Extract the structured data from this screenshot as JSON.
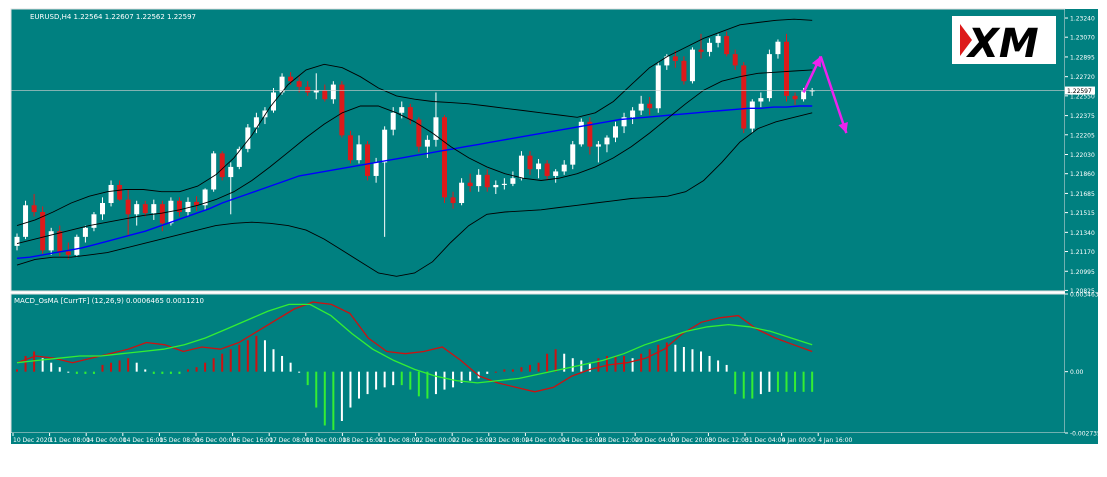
{
  "chart_data": [
    {
      "type": "candlestick",
      "title": "EURUSD,H4  1.22564 1.22607 1.22562 1.22597",
      "current_price_label": "1.22597",
      "ylim": [
        1.2082,
        1.2332
      ],
      "price_axis_ticks": [
        "1.23240",
        "1.23070",
        "1.22895",
        "1.22720",
        "1.22550",
        "1.22375",
        "1.22205",
        "1.22030",
        "1.21860",
        "1.21685",
        "1.21515",
        "1.21340",
        "1.21170",
        "1.20995",
        "1.20825"
      ],
      "x_ticks": [
        "10 Dec 2020",
        "11 Dec 08:00",
        "14 Dec 00:00",
        "14 Dec 16:00",
        "15 Dec 08:00",
        "16 Dec 00:00",
        "16 Dec 16:00",
        "17 Dec 08:00",
        "18 Dec 00:00",
        "18 Dec 16:00",
        "21 Dec 08:00",
        "22 Dec 00:00",
        "22 Dec 16:00",
        "23 Dec 08:00",
        "24 Dec 00:00",
        "24 Dec 16:00",
        "28 Dec 12:00",
        "29 Dec 04:00",
        "29 Dec 20:00",
        "30 Dec 12:00",
        "31 Dec 04:00",
        "4 Jan 00:00",
        "4 Jan 16:00"
      ],
      "candles": [
        [
          1.2122,
          1.2133,
          1.2118,
          1.213
        ],
        [
          1.213,
          1.2162,
          1.2128,
          1.2158
        ],
        [
          1.2158,
          1.2168,
          1.2148,
          1.2152
        ],
        [
          1.2152,
          1.2157,
          1.2115,
          1.2118
        ],
        [
          1.2118,
          1.2138,
          1.2114,
          1.2135
        ],
        [
          1.2135,
          1.214,
          1.2113,
          1.2117
        ],
        [
          1.2117,
          1.2125,
          1.211,
          1.2114
        ],
        [
          1.2114,
          1.2132,
          1.2112,
          1.213
        ],
        [
          1.213,
          1.214,
          1.2125,
          1.2138
        ],
        [
          1.2138,
          1.2152,
          1.2135,
          1.215
        ],
        [
          1.215,
          1.2165,
          1.2145,
          1.216
        ],
        [
          1.216,
          1.218,
          1.2157,
          1.2176
        ],
        [
          1.2176,
          1.218,
          1.2162,
          1.2163
        ],
        [
          1.2163,
          1.2172,
          1.213,
          1.215
        ],
        [
          1.215,
          1.2162,
          1.214,
          1.2159
        ],
        [
          1.2159,
          1.2162,
          1.2148,
          1.2151
        ],
        [
          1.2151,
          1.2163,
          1.2145,
          1.2159
        ],
        [
          1.2159,
          1.2162,
          1.2135,
          1.2142
        ],
        [
          1.2142,
          1.2165,
          1.214,
          1.2162
        ],
        [
          1.2162,
          1.2165,
          1.2148,
          1.2152
        ],
        [
          1.2152,
          1.2165,
          1.2148,
          1.2161
        ],
        [
          1.2161,
          1.2166,
          1.2153,
          1.2158
        ],
        [
          1.2158,
          1.2173,
          1.2154,
          1.2172
        ],
        [
          1.2172,
          1.2206,
          1.217,
          1.2204
        ],
        [
          1.2204,
          1.2206,
          1.218,
          1.2183
        ],
        [
          1.2183,
          1.2196,
          1.215,
          1.2192
        ],
        [
          1.2192,
          1.221,
          1.219,
          1.2208
        ],
        [
          1.2208,
          1.223,
          1.2205,
          1.2227
        ],
        [
          1.2227,
          1.224,
          1.2222,
          1.2236
        ],
        [
          1.2236,
          1.2245,
          1.223,
          1.2242
        ],
        [
          1.2242,
          1.2262,
          1.224,
          1.2258
        ],
        [
          1.2258,
          1.2275,
          1.2256,
          1.2272
        ],
        [
          1.2272,
          1.2276,
          1.2265,
          1.2268
        ],
        [
          1.2268,
          1.2272,
          1.2258,
          1.2263
        ],
        [
          1.2263,
          1.2268,
          1.2255,
          1.2258
        ],
        [
          1.2258,
          1.2275,
          1.2252,
          1.226
        ],
        [
          1.226,
          1.2265,
          1.225,
          1.2252
        ],
        [
          1.2252,
          1.2268,
          1.2248,
          1.2265
        ],
        [
          1.2265,
          1.2268,
          1.2218,
          1.222
        ],
        [
          1.222,
          1.2224,
          1.2195,
          1.2198
        ],
        [
          1.2198,
          1.222,
          1.2195,
          1.2212
        ],
        [
          1.2212,
          1.2215,
          1.218,
          1.2184
        ],
        [
          1.2184,
          1.22,
          1.2178,
          1.2196
        ],
        [
          1.2196,
          1.2228,
          1.213,
          1.2225
        ],
        [
          1.2225,
          1.2245,
          1.222,
          1.224
        ],
        [
          1.224,
          1.225,
          1.2235,
          1.2245
        ],
        [
          1.2245,
          1.2248,
          1.223,
          1.2234
        ],
        [
          1.2234,
          1.2236,
          1.2205,
          1.221
        ],
        [
          1.221,
          1.222,
          1.22,
          1.2216
        ],
        [
          1.2216,
          1.2258,
          1.221,
          1.2236
        ],
        [
          1.2236,
          1.2238,
          1.216,
          1.2165
        ],
        [
          1.2165,
          1.217,
          1.2155,
          1.216
        ],
        [
          1.216,
          1.2182,
          1.2158,
          1.2178
        ],
        [
          1.2178,
          1.2186,
          1.217,
          1.2175
        ],
        [
          1.2175,
          1.219,
          1.217,
          1.2185
        ],
        [
          1.2185,
          1.219,
          1.217,
          1.2174
        ],
        [
          1.2174,
          1.218,
          1.2168,
          1.2176
        ],
        [
          1.2176,
          1.2182,
          1.2172,
          1.2177
        ],
        [
          1.2177,
          1.2188,
          1.2175,
          1.2182
        ],
        [
          1.2182,
          1.2206,
          1.218,
          1.2202
        ],
        [
          1.2202,
          1.2206,
          1.2185,
          1.219
        ],
        [
          1.219,
          1.2199,
          1.2182,
          1.2195
        ],
        [
          1.2195,
          1.2198,
          1.218,
          1.2184
        ],
        [
          1.2184,
          1.219,
          1.2178,
          1.2188
        ],
        [
          1.2188,
          1.2198,
          1.2185,
          1.2194
        ],
        [
          1.2194,
          1.2215,
          1.219,
          1.2212
        ],
        [
          1.2212,
          1.2235,
          1.221,
          1.2232
        ],
        [
          1.2232,
          1.2236,
          1.2203,
          1.221
        ],
        [
          1.221,
          1.2215,
          1.2196,
          1.2212
        ],
        [
          1.2212,
          1.222,
          1.2205,
          1.2218
        ],
        [
          1.2218,
          1.2232,
          1.2214,
          1.2228
        ],
        [
          1.2228,
          1.224,
          1.2222,
          1.2236
        ],
        [
          1.2236,
          1.2245,
          1.223,
          1.2242
        ],
        [
          1.2242,
          1.2255,
          1.2238,
          1.2248
        ],
        [
          1.2248,
          1.2254,
          1.2238,
          1.2244
        ],
        [
          1.2244,
          1.2285,
          1.224,
          1.2282
        ],
        [
          1.2282,
          1.2292,
          1.2278,
          1.229
        ],
        [
          1.229,
          1.2295,
          1.228,
          1.2286
        ],
        [
          1.2286,
          1.229,
          1.2265,
          1.2268
        ],
        [
          1.2268,
          1.2298,
          1.2266,
          1.2296
        ],
        [
          1.2296,
          1.231,
          1.2288,
          1.2294
        ],
        [
          1.2294,
          1.2306,
          1.229,
          1.2302
        ],
        [
          1.2302,
          1.231,
          1.2298,
          1.2308
        ],
        [
          1.2308,
          1.2312,
          1.229,
          1.2292
        ],
        [
          1.2292,
          1.2296,
          1.2278,
          1.2282
        ],
        [
          1.2282,
          1.2285,
          1.2222,
          1.2226
        ],
        [
          1.2226,
          1.2252,
          1.2222,
          1.225
        ],
        [
          1.225,
          1.2258,
          1.2245,
          1.2253
        ],
        [
          1.2253,
          1.2296,
          1.225,
          1.2292
        ],
        [
          1.2292,
          1.2305,
          1.2288,
          1.2303
        ],
        [
          1.2303,
          1.231,
          1.225,
          1.2255
        ],
        [
          1.2255,
          1.2258,
          1.2247,
          1.2252
        ],
        [
          1.2252,
          1.2262,
          1.225,
          1.2259
        ],
        [
          1.2259,
          1.2262,
          1.2255,
          1.226
        ]
      ],
      "overlays": [
        {
          "kind": "moving-average",
          "color": "#0000ff",
          "values": [
            1.2111,
            1.2112,
            1.2114,
            1.2116,
            1.2118,
            1.212,
            1.2123,
            1.2126,
            1.2129,
            1.2132,
            1.2135,
            1.2139,
            1.2143,
            1.2147,
            1.2151,
            1.2155,
            1.216,
            1.2164,
            1.2168,
            1.2172,
            1.2176,
            1.218,
            1.2184,
            1.2186,
            1.2188,
            1.219,
            1.2192,
            1.2194,
            1.2196,
            1.2198,
            1.22,
            1.2202,
            1.2204,
            1.2206,
            1.2208,
            1.221,
            1.2212,
            1.2214,
            1.2216,
            1.2218,
            1.222,
            1.2222,
            1.2224,
            1.2226,
            1.2228,
            1.223,
            1.2232,
            1.2234,
            1.2235,
            1.2236,
            1.2237,
            1.2238,
            1.2239,
            1.224,
            1.2241,
            1.2242,
            1.2243,
            1.2244,
            1.2244,
            1.2245,
            1.2245,
            1.2246,
            1.2246
          ]
        },
        {
          "kind": "bollinger-upper",
          "color": "#000000",
          "values": [
            1.214,
            1.2145,
            1.2152,
            1.216,
            1.2166,
            1.217,
            1.2172,
            1.2172,
            1.217,
            1.217,
            1.2175,
            1.2185,
            1.22,
            1.222,
            1.2245,
            1.2265,
            1.2278,
            1.2283,
            1.228,
            1.2272,
            1.2262,
            1.2255,
            1.2252,
            1.225,
            1.2249,
            1.2248,
            1.2246,
            1.2244,
            1.2242,
            1.224,
            1.2238,
            1.2236,
            1.224,
            1.225,
            1.2265,
            1.228,
            1.229,
            1.2298,
            1.2306,
            1.2312,
            1.2318,
            1.232,
            1.2322,
            1.2323,
            1.2322
          ]
        },
        {
          "kind": "bollinger-middle",
          "color": "#000000",
          "values": [
            1.2124,
            1.2128,
            1.2132,
            1.2136,
            1.214,
            1.2143,
            1.2146,
            1.2149,
            1.2151,
            1.2154,
            1.2158,
            1.2163,
            1.217,
            1.218,
            1.2192,
            1.2205,
            1.2218,
            1.223,
            1.224,
            1.2246,
            1.2246,
            1.224,
            1.2232,
            1.2222,
            1.221,
            1.22,
            1.2192,
            1.2186,
            1.2182,
            1.218,
            1.2182,
            1.2186,
            1.2192,
            1.22,
            1.221,
            1.2222,
            1.2235,
            1.2248,
            1.226,
            1.2268,
            1.2272,
            1.2275,
            1.2276,
            1.2277,
            1.2278
          ]
        },
        {
          "kind": "bollinger-lower",
          "color": "#000000",
          "values": [
            1.2105,
            1.211,
            1.2112,
            1.2112,
            1.2114,
            1.2116,
            1.212,
            1.2124,
            1.2128,
            1.2132,
            1.2136,
            1.214,
            1.2142,
            1.2143,
            1.2142,
            1.214,
            1.2136,
            1.2128,
            1.2118,
            1.2108,
            1.2098,
            1.2095,
            1.2098,
            1.2108,
            1.2125,
            1.214,
            1.215,
            1.2152,
            1.2153,
            1.2154,
            1.2156,
            1.2158,
            1.216,
            1.2162,
            1.2164,
            1.2165,
            1.2166,
            1.217,
            1.218,
            1.2196,
            1.2214,
            1.2226,
            1.2232,
            1.2236,
            1.224
          ]
        }
      ],
      "annotations": [
        {
          "kind": "arrow",
          "color": "#ee22ee",
          "from": [
            92,
            1.2258
          ],
          "to": [
            94,
            1.229
          ]
        },
        {
          "kind": "arrow",
          "color": "#ee22ee",
          "from": [
            94,
            1.229
          ],
          "to": [
            97,
            1.2222
          ]
        }
      ],
      "logo_text": "XM"
    },
    {
      "type": "histogram+lines",
      "title": "MACD_OsMA [CurrTF] (12,26,9) 0.0006465 0.0011210",
      "ylim": [
        -0.002735,
        0.003463
      ],
      "y_ticks": [
        "0.003463",
        "0.00",
        "-0.002735"
      ],
      "histogram": [
        0.0001,
        0.0007,
        0.0009,
        0.0006,
        0.0004,
        0.0002,
        0.0,
        -0.0001,
        -0.0001,
        -0.0001,
        0.0003,
        0.0004,
        0.0005,
        0.0006,
        0.0004,
        0.0001,
        -0.0001,
        -0.0001,
        -0.0001,
        -0.0001,
        0.0001,
        0.0002,
        0.0004,
        0.0006,
        0.0008,
        0.001,
        0.0012,
        0.0014,
        0.0016,
        0.0014,
        0.001,
        0.0007,
        0.0004,
        0.0,
        -0.0006,
        -0.0016,
        -0.0024,
        -0.0026,
        -0.0022,
        -0.0016,
        -0.0012,
        -0.001,
        -0.0008,
        -0.0007,
        -0.0006,
        -0.0006,
        -0.0008,
        -0.0011,
        -0.0012,
        -0.001,
        -0.0008,
        -0.0007,
        -0.0005,
        -0.0004,
        -0.0003,
        -0.0001,
        0.0,
        0.0001,
        0.0001,
        0.0002,
        0.0003,
        0.0004,
        0.0008,
        0.001,
        0.0008,
        0.0006,
        0.0005,
        0.0004,
        0.0006,
        0.0007,
        0.0007,
        0.0007,
        0.0006,
        0.0008,
        0.001,
        0.0012,
        0.0013,
        0.0012,
        0.0011,
        0.001,
        0.0009,
        0.0007,
        0.0005,
        0.0003,
        -0.001,
        -0.0012,
        -0.0012,
        -0.001,
        -0.0009,
        -0.0009,
        -0.0009,
        -0.0009,
        -0.0009,
        -0.0009
      ],
      "macd_line": [
        0.0004,
        0.0007,
        0.0006,
        0.0004,
        0.0006,
        0.0008,
        0.001,
        0.0013,
        0.0012,
        0.0009,
        0.0011,
        0.001,
        0.0013,
        0.0018,
        0.0023,
        0.0028,
        0.0031,
        0.003,
        0.0026,
        0.0015,
        0.0009,
        0.0008,
        0.0009,
        0.0011,
        0.0005,
        -0.0002,
        -0.0005,
        -0.0007,
        -0.0009,
        -0.0007,
        -0.0002,
        0.0001,
        0.0003,
        0.0004,
        0.0006,
        0.001,
        0.0017,
        0.0022,
        0.0024,
        0.0025,
        0.0019,
        0.0015,
        0.0012,
        0.0009
      ],
      "signal_line": [
        0.0004,
        0.0005,
        0.0006,
        0.0007,
        0.0007,
        0.0008,
        0.0009,
        0.001,
        0.0012,
        0.0015,
        0.0019,
        0.0023,
        0.0027,
        0.003,
        0.003,
        0.0025,
        0.0017,
        0.001,
        0.0005,
        0.0001,
        -0.0002,
        -0.0004,
        -0.0005,
        -0.0004,
        -0.0003,
        -0.0001,
        0.0001,
        0.0003,
        0.0005,
        0.0008,
        0.0012,
        0.0015,
        0.0018,
        0.002,
        0.0021,
        0.002,
        0.0018,
        0.0015,
        0.0012
      ],
      "colors": {
        "macd": "#cc1111",
        "signal": "#33ee33",
        "hist_up": "#cc1111",
        "hist_up_light": "#ffffff",
        "hist_down": "#33ee33",
        "hist_down_light": "#ffffff"
      }
    }
  ],
  "colors": {
    "background": "#008080",
    "bull": "#ffffff",
    "bear": "#dd1a1a",
    "frame": "#e0e0e0"
  }
}
